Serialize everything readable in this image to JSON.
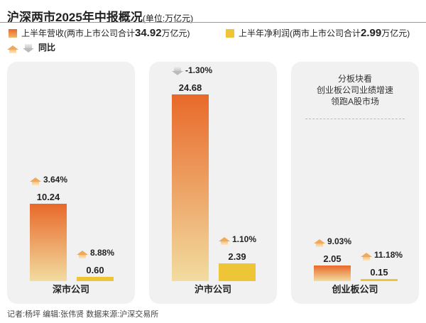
{
  "header": {
    "title": "沪深两市2025年中报概况",
    "unit": "(单位:万亿元)"
  },
  "legend": {
    "revenue": {
      "label": "上半年营收(两市上市公司合计",
      "total": "34.92",
      "suffix": "万亿元)",
      "color": "#e8692a"
    },
    "profit": {
      "label": "上半年净利润(两市上市公司合计",
      "total": "2.99",
      "suffix": "万亿元)",
      "color": "#eec537"
    },
    "yoy": "同比"
  },
  "note": [
    "分板块看",
    "创业板公司业绩增速",
    "领跑A股市场"
  ],
  "chart_data": {
    "type": "bar",
    "categories": [
      "深市公司",
      "沪市公司",
      "创业板公司"
    ],
    "series": [
      {
        "name": "上半年营收",
        "values": [
          10.24,
          24.68,
          2.05
        ],
        "labels": [
          "10.24",
          "24.68",
          "2.05"
        ],
        "yoy": [
          "3.64%",
          "-1.30%",
          "9.03%"
        ],
        "yoy_dir": [
          "up",
          "down",
          "up"
        ]
      },
      {
        "name": "上半年净利润",
        "values": [
          0.6,
          2.39,
          0.15
        ],
        "labels": [
          "0.60",
          "2.39",
          "0.15"
        ],
        "yoy": [
          "8.88%",
          "1.10%",
          "11.18%"
        ],
        "yoy_dir": [
          "up",
          "up",
          "up"
        ]
      }
    ],
    "unit": "万亿元"
  },
  "footer": "记者:杨坪   编辑:张伟贤   数据来源:沪深交易所"
}
